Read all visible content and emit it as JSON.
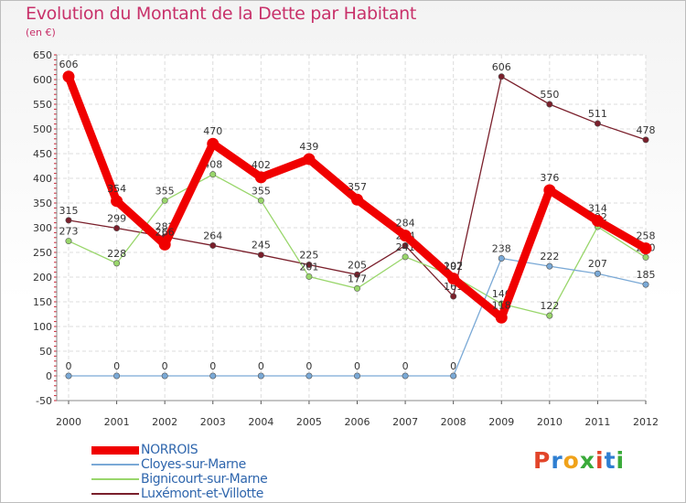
{
  "title": "Evolution du Montant de la Dette par Habitant",
  "unit": "(en €)",
  "brand": "Proxiti",
  "brand_colors": [
    "#e2452a",
    "#2f7fd1",
    "#f0a21a",
    "#3aaa3a",
    "#e2452a",
    "#2f7fd1",
    "#3aaa3a"
  ],
  "chart_data": {
    "type": "line",
    "x": [
      "2000",
      "2001",
      "2002",
      "2003",
      "2004",
      "2005",
      "2006",
      "2007",
      "2008",
      "2009",
      "2010",
      "2011",
      "2012"
    ],
    "ylim": [
      -50,
      650
    ],
    "yticks": [
      -50,
      0,
      50,
      100,
      150,
      200,
      250,
      300,
      350,
      400,
      450,
      500,
      550,
      600,
      650
    ],
    "grid": true,
    "legend_position": "bottom-left",
    "series": [
      {
        "name": "Luxémont-et-Villotte",
        "color": "#7a1f2b",
        "values": [
          315,
          299,
          282,
          264,
          245,
          225,
          205,
          264,
          161,
          606,
          550,
          511,
          478
        ],
        "labels": [
          "315",
          "299",
          "282",
          "264",
          "245",
          "225",
          "205",
          "264",
          "161",
          "606",
          "550",
          "511",
          "478"
        ]
      },
      {
        "name": "Bignicourt-sur-Marne",
        "color": "#99d66b",
        "values": [
          273,
          228,
          355,
          408,
          355,
          201,
          177,
          241,
          202,
          146,
          122,
          302,
          240
        ],
        "labels": [
          "273",
          "228",
          "355",
          "408",
          "355",
          "201",
          "177",
          "241",
          "202",
          "146",
          "122",
          "302",
          "240"
        ]
      },
      {
        "name": "Cloyes-sur-Marne",
        "color": "#7aa9d6",
        "values": [
          0,
          0,
          0,
          0,
          0,
          0,
          0,
          0,
          0,
          238,
          222,
          207,
          185
        ],
        "labels": [
          "0",
          "0",
          "0",
          "0",
          "0",
          "0",
          "0",
          "0",
          "0",
          "238",
          "222",
          "207",
          "185"
        ]
      },
      {
        "name": "NORROIS",
        "color": "#f00000",
        "values": [
          606,
          354,
          266,
          470,
          402,
          439,
          357,
          284,
          197,
          118,
          376,
          314,
          258
        ],
        "labels": [
          "606",
          "354",
          "266",
          "470",
          "402",
          "439",
          "357",
          "284",
          "197",
          "118",
          "376",
          "314",
          "258"
        ]
      }
    ],
    "legend_order": [
      "NORROIS",
      "Cloyes-sur-Marne",
      "Bignicourt-sur-Marne",
      "Luxémont-et-Villotte"
    ]
  }
}
